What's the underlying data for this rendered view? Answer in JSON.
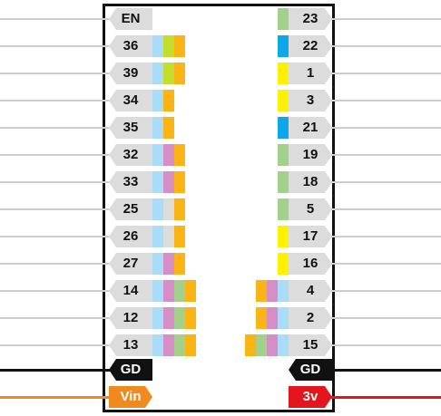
{
  "colors": {
    "light_blue": "#a9dcf6",
    "yellow_green": "#c5de2c",
    "orange": "#fbb416",
    "purple": "#d68ec7",
    "green": "#a3d18b",
    "blue": "#0ea7ea",
    "yellow": "#ffef00",
    "grey": "#dcdcdc",
    "wire_grey": "#cfcfcf",
    "black": "#111111",
    "vin_orange": "#f08a1e",
    "red": "#e3161f"
  },
  "left_pins": [
    {
      "label": "EN",
      "swatches": []
    },
    {
      "label": "36",
      "swatches": [
        "light_blue",
        "yellow_green",
        "orange"
      ]
    },
    {
      "label": "39",
      "swatches": [
        "light_blue",
        "yellow_green",
        "orange"
      ]
    },
    {
      "label": "34",
      "swatches": [
        "light_blue",
        "orange"
      ]
    },
    {
      "label": "35",
      "swatches": [
        "light_blue",
        "orange"
      ]
    },
    {
      "label": "32",
      "swatches": [
        "light_blue",
        "purple",
        "orange"
      ]
    },
    {
      "label": "33",
      "swatches": [
        "light_blue",
        "purple",
        "orange"
      ]
    },
    {
      "label": "25",
      "swatches": [
        "light_blue",
        "grey",
        "orange"
      ]
    },
    {
      "label": "26",
      "swatches": [
        "light_blue",
        "grey",
        "orange"
      ]
    },
    {
      "label": "27",
      "swatches": [
        "light_blue",
        "purple",
        "orange"
      ]
    },
    {
      "label": "14",
      "swatches": [
        "light_blue",
        "purple",
        "green",
        "orange"
      ]
    },
    {
      "label": "12",
      "swatches": [
        "light_blue",
        "purple",
        "green",
        "orange"
      ]
    },
    {
      "label": "13",
      "swatches": [
        "light_blue",
        "purple",
        "green",
        "orange"
      ]
    }
  ],
  "right_pins": [
    {
      "label": "23",
      "swatches": [
        "green"
      ]
    },
    {
      "label": "22",
      "swatches": [
        "blue"
      ]
    },
    {
      "label": "1",
      "swatches": [
        "yellow"
      ]
    },
    {
      "label": "3",
      "swatches": [
        "yellow"
      ]
    },
    {
      "label": "21",
      "swatches": [
        "blue"
      ]
    },
    {
      "label": "19",
      "swatches": [
        "green"
      ]
    },
    {
      "label": "18",
      "swatches": [
        "green"
      ]
    },
    {
      "label": "5",
      "swatches": [
        "green"
      ]
    },
    {
      "label": "17",
      "swatches": [
        "yellow"
      ]
    },
    {
      "label": "16",
      "swatches": [
        "yellow"
      ]
    },
    {
      "label": "4",
      "swatches": [
        "orange",
        "purple",
        "light_blue"
      ]
    },
    {
      "label": "2",
      "swatches": [
        "orange",
        "purple",
        "light_blue"
      ]
    },
    {
      "label": "15",
      "swatches": [
        "orange",
        "green",
        "purple",
        "light_blue"
      ]
    }
  ],
  "power": {
    "gnd_left": "GD",
    "gnd_right": "GD",
    "vin": "Vin",
    "v3": "3v"
  }
}
